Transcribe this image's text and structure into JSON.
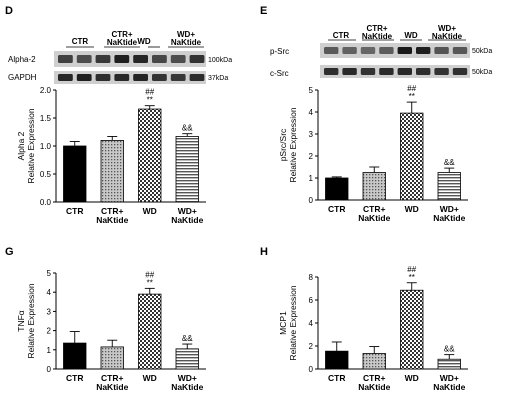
{
  "panels": {
    "D": {
      "letter": "D",
      "blot_rows": [
        "Alpha-2",
        "GAPDH"
      ],
      "kda": [
        "100kDa",
        "37kDa"
      ],
      "lane_labels": [
        "CTR",
        "CTR+\nNaKtide",
        "WD",
        "WD+\nNaKtide"
      ]
    },
    "E": {
      "letter": "E",
      "blot_rows": [
        "p-Src",
        "c-Src"
      ],
      "kda": [
        "50kDa",
        "50kDa"
      ],
      "lane_labels": [
        "CTR",
        "CTR+\nNaKtide",
        "WD",
        "WD+\nNaKtide"
      ]
    },
    "G": {
      "letter": "G"
    },
    "H": {
      "letter": "H"
    }
  },
  "chart_data": [
    {
      "panel": "D",
      "type": "bar",
      "categories": [
        "CTR",
        "CTR+\nNaKtide",
        "WD",
        "WD+\nNaKtide"
      ],
      "values": [
        1.0,
        1.1,
        1.66,
        1.17
      ],
      "errors": [
        0.08,
        0.07,
        0.06,
        0.05
      ],
      "annotations": [
        "",
        "",
        "##\n**",
        "&&"
      ],
      "fills": [
        "black",
        "dots",
        "checker",
        "stripes"
      ],
      "ylabel": "Alpha 2\nRelative Expression",
      "ylim": [
        0,
        2.0
      ],
      "yticks": [
        0.0,
        0.5,
        1.0,
        1.5,
        2.0
      ],
      "ytick_labels": [
        "0.0",
        "0.5",
        "1.0",
        "1.5",
        "2.0"
      ]
    },
    {
      "panel": "E",
      "type": "bar",
      "categories": [
        "CTR",
        "CTR+\nNaKtide",
        "WD",
        "WD+\nNaKtide"
      ],
      "values": [
        1.0,
        1.25,
        3.95,
        1.25
      ],
      "errors": [
        0.05,
        0.25,
        0.5,
        0.2
      ],
      "annotations": [
        "",
        "",
        "##\n**",
        "&&"
      ],
      "fills": [
        "black",
        "dots",
        "checker",
        "stripes"
      ],
      "ylabel": "pSrc/Src\nRelative Expression",
      "ylim": [
        0,
        5
      ],
      "yticks": [
        0,
        1,
        2,
        3,
        4,
        5
      ],
      "ytick_labels": [
        "0",
        "1",
        "2",
        "3",
        "4",
        "5"
      ]
    },
    {
      "panel": "G",
      "type": "bar",
      "categories": [
        "CTR",
        "CTR+\nNaKtide",
        "WD",
        "WD+\nNaKtide"
      ],
      "values": [
        1.35,
        1.15,
        3.9,
        1.05
      ],
      "errors": [
        0.6,
        0.35,
        0.3,
        0.25
      ],
      "annotations": [
        "",
        "",
        "##\n**",
        "&&"
      ],
      "fills": [
        "black",
        "dots",
        "checker",
        "stripes"
      ],
      "ylabel": "TNFα\nRelative Expression",
      "ylim": [
        0,
        5
      ],
      "yticks": [
        0,
        1,
        2,
        3,
        4,
        5
      ],
      "ytick_labels": [
        "0",
        "1",
        "2",
        "3",
        "4",
        "5"
      ]
    },
    {
      "panel": "H",
      "type": "bar",
      "categories": [
        "CTR",
        "CTR+\nNaKtide",
        "WD",
        "WD+\nNaKtide"
      ],
      "values": [
        1.55,
        1.35,
        6.85,
        0.85
      ],
      "errors": [
        0.8,
        0.6,
        0.65,
        0.4
      ],
      "annotations": [
        "",
        "",
        "##\n**",
        "&&"
      ],
      "fills": [
        "black",
        "dots",
        "checker",
        "stripes"
      ],
      "ylabel": "MCP1\nRelative Expression",
      "ylim": [
        0,
        8
      ],
      "yticks": [
        0,
        2,
        4,
        6,
        8
      ],
      "ytick_labels": [
        "0",
        "2",
        "4",
        "6",
        "8"
      ]
    }
  ]
}
